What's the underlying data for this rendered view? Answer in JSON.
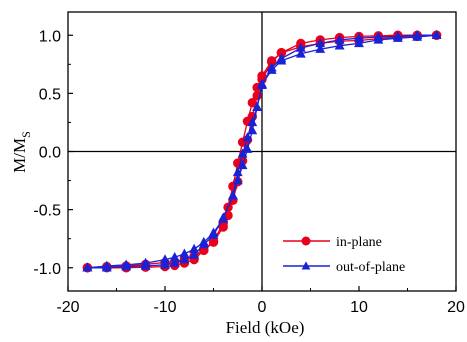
{
  "chart_data": {
    "type": "line",
    "xlabel": "Field (kOe)",
    "ylabel": "M/M",
    "ylabel_subscript": "S",
    "xlim": [
      -20,
      20
    ],
    "ylim": [
      -1.2,
      1.2
    ],
    "xticks": [
      -20,
      -10,
      0,
      10,
      20
    ],
    "xtick_labels": [
      "-20",
      "-10",
      "0",
      "10",
      "20"
    ],
    "yticks": [
      -1.0,
      -0.5,
      0.0,
      0.5,
      1.0
    ],
    "ytick_labels": [
      "-1.0",
      "-0.5",
      "0.0",
      "0.5",
      "1.0"
    ],
    "zero_lines": true,
    "grid": false,
    "legend_position": "lower-right",
    "series": [
      {
        "name": "in-plane",
        "color": "#e8001c",
        "marker": "circle",
        "x": [
          -18,
          -16,
          -14,
          -12,
          -10,
          -9,
          -8,
          -7,
          -6,
          -5,
          -4,
          -3.5,
          -3,
          -2.5,
          -2,
          -1.5,
          -1,
          -0.5,
          0,
          1,
          2,
          4,
          6,
          8,
          10,
          12,
          14,
          16,
          18
        ],
        "y_descending": [
          -1.0,
          -0.99,
          -0.985,
          -0.97,
          -0.955,
          -0.95,
          -0.93,
          -0.9,
          -0.85,
          -0.78,
          -0.65,
          -0.55,
          -0.42,
          -0.26,
          -0.08,
          0.1,
          0.3,
          0.48,
          0.62,
          0.77,
          0.85,
          0.93,
          0.96,
          0.98,
          0.99,
          0.995,
          1.0,
          1.0,
          1.0
        ],
        "y_ascending": [
          -1.0,
          -1.0,
          -1.0,
          -0.995,
          -0.99,
          -0.98,
          -0.96,
          -0.93,
          -0.85,
          -0.77,
          -0.62,
          -0.48,
          -0.3,
          -0.1,
          0.08,
          0.26,
          0.42,
          0.55,
          0.65,
          0.78,
          0.85,
          0.9,
          0.93,
          0.95,
          0.955,
          0.97,
          0.985,
          0.99,
          1.0
        ]
      },
      {
        "name": "out-of-plane",
        "color": "#1a22d6",
        "marker": "triangle",
        "x": [
          -18,
          -16,
          -14,
          -12,
          -10,
          -9,
          -8,
          -7,
          -6,
          -5,
          -4,
          -3,
          -2.5,
          -2,
          -1.5,
          -1,
          -0.5,
          0,
          1,
          2,
          4,
          6,
          8,
          10,
          12,
          14,
          16,
          18
        ],
        "y_descending": [
          -1.0,
          -0.985,
          -0.975,
          -0.96,
          -0.93,
          -0.91,
          -0.88,
          -0.84,
          -0.78,
          -0.7,
          -0.58,
          -0.38,
          -0.25,
          -0.12,
          0.02,
          0.18,
          0.38,
          0.57,
          0.72,
          0.8,
          0.89,
          0.93,
          0.96,
          0.975,
          0.985,
          0.99,
          1.0,
          1.0
        ],
        "y_ascending": [
          -1.0,
          -1.0,
          -0.99,
          -0.985,
          -0.975,
          -0.96,
          -0.93,
          -0.89,
          -0.8,
          -0.72,
          -0.57,
          -0.38,
          -0.18,
          -0.02,
          0.12,
          0.25,
          0.38,
          0.58,
          0.7,
          0.78,
          0.84,
          0.88,
          0.91,
          0.93,
          0.96,
          0.975,
          0.985,
          1.0
        ]
      }
    ]
  }
}
